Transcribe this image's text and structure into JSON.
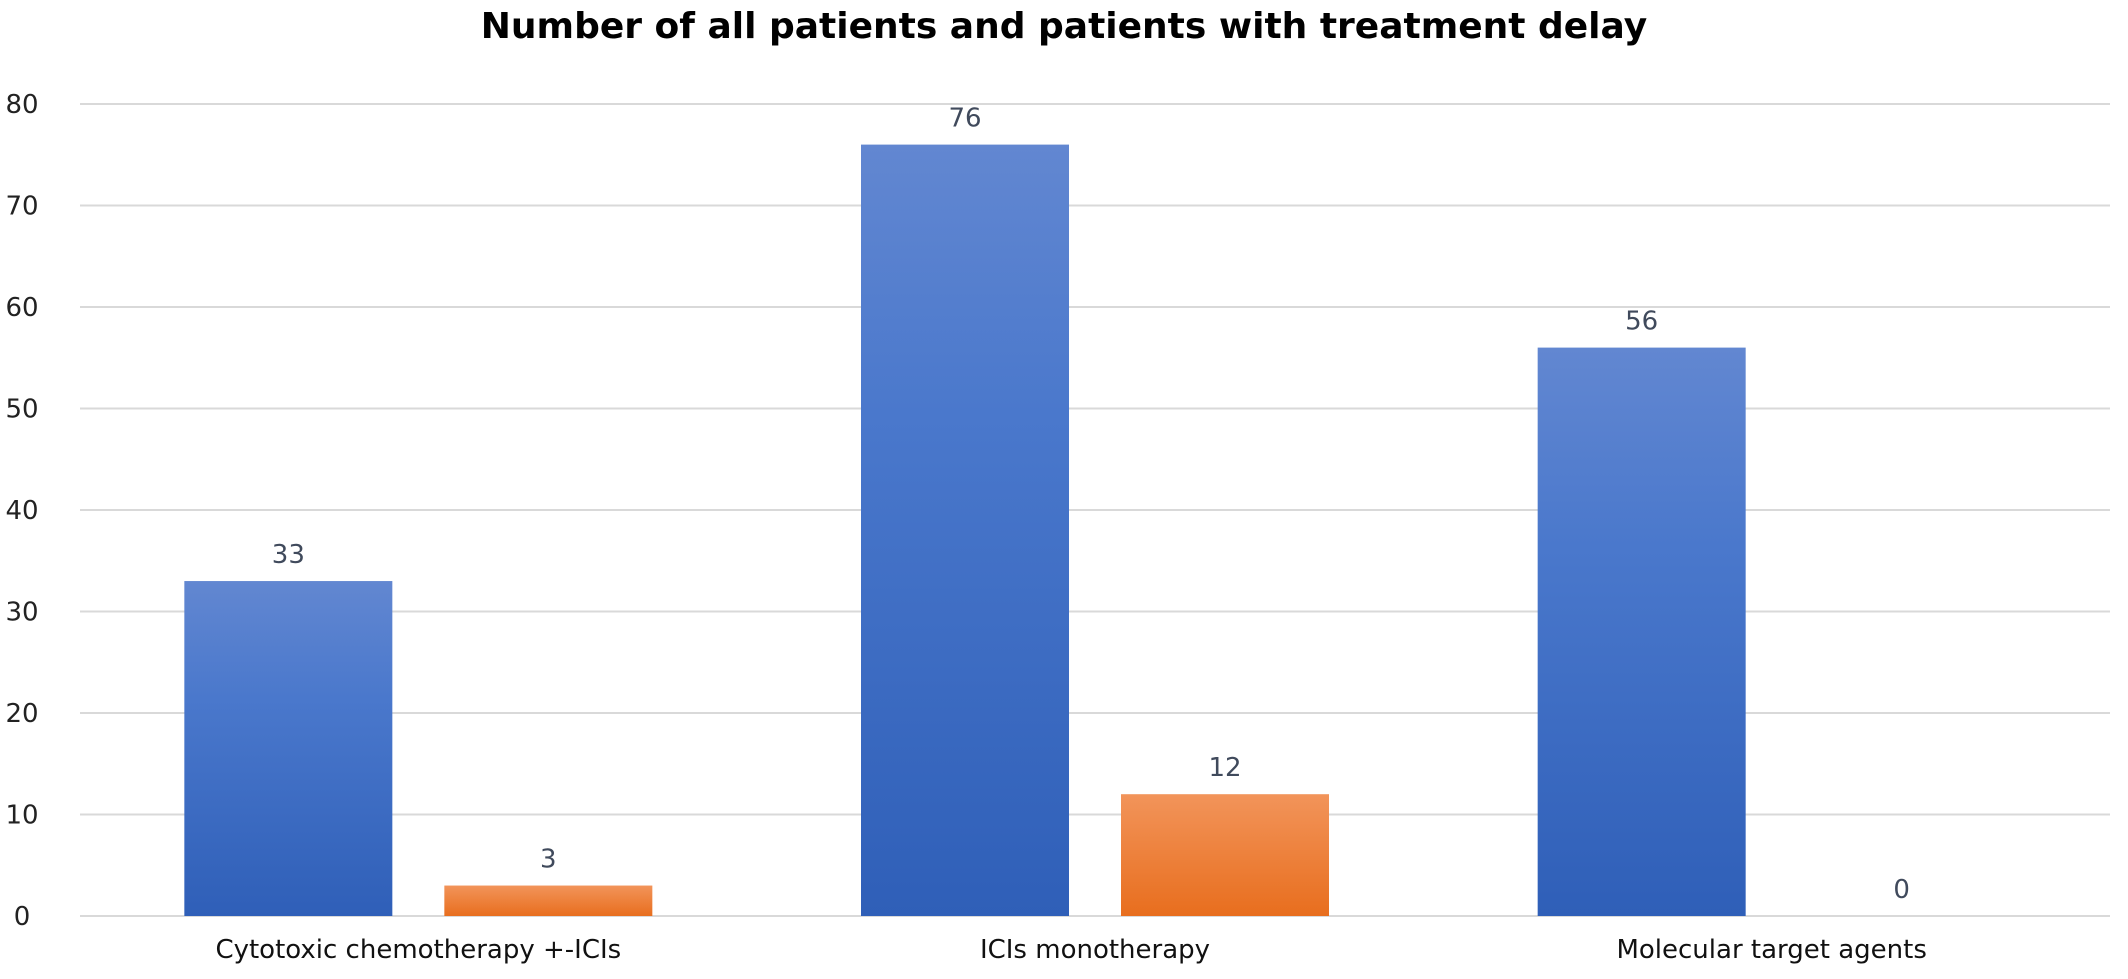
{
  "chart_data": {
    "type": "bar",
    "title": "Number of all patients and patients with treatment delay",
    "xlabel": "",
    "ylabel": "",
    "categories": [
      "Cytotoxic chemotherapy +-ICIs",
      "ICIs monotherapy",
      "Molecular target agents"
    ],
    "series": [
      {
        "values": [
          33,
          76,
          56
        ],
        "color": "#3f6fc9"
      },
      {
        "values": [
          3,
          12,
          0
        ],
        "color": "#ee7a2a"
      }
    ],
    "yticks": [
      0,
      10,
      20,
      30,
      40,
      50,
      60,
      70,
      80
    ],
    "ylim": [
      0,
      80
    ],
    "grid": true,
    "legend": "none",
    "data_labels": true
  }
}
